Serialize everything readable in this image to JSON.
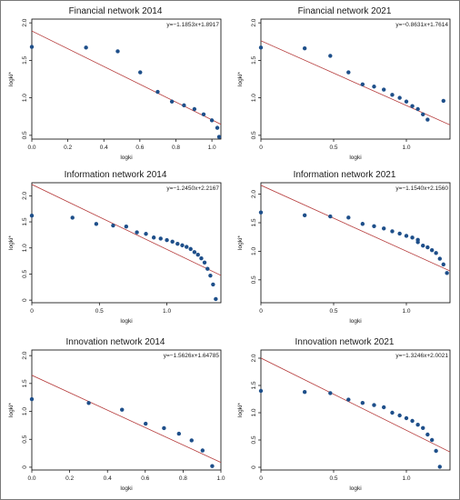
{
  "figure": {
    "colors": {
      "points": "#1e4f8a",
      "fit_line": "#b53a3a",
      "frame": "#000000",
      "background": "#ffffff"
    }
  },
  "chart_data": [
    {
      "type": "scatter",
      "title": "Financial network 2014",
      "xlabel": "logki",
      "ylabel": "logki*",
      "equation": "y=−1.1853x+1.8917",
      "fit": {
        "slope": -1.1853,
        "intercept": 1.8917
      },
      "xlim": [
        0,
        1.05
      ],
      "ylim": [
        0.45,
        2.05
      ],
      "xticks": [
        {
          "v": 0,
          "label": "0.0"
        },
        {
          "v": 0.2,
          "label": "0.2"
        },
        {
          "v": 0.4,
          "label": "0.4"
        },
        {
          "v": 0.6,
          "label": "0.6"
        },
        {
          "v": 0.8,
          "label": "0.8"
        },
        {
          "v": 1.0,
          "label": "1.0"
        }
      ],
      "yticks": [
        {
          "v": 0.5,
          "label": "0.5"
        },
        {
          "v": 1.0,
          "label": "1.0"
        },
        {
          "v": 1.5,
          "label": "1.5"
        },
        {
          "v": 2.0,
          "label": "2.0"
        }
      ],
      "points": [
        [
          0,
          1.68
        ],
        [
          0.301,
          1.67
        ],
        [
          0.477,
          1.62
        ],
        [
          0.602,
          1.34
        ],
        [
          0.699,
          1.08
        ],
        [
          0.778,
          0.95
        ],
        [
          0.845,
          0.9
        ],
        [
          0.903,
          0.85
        ],
        [
          0.954,
          0.78
        ],
        [
          1.0,
          0.7
        ],
        [
          1.03,
          0.6
        ],
        [
          1.04,
          0.48
        ]
      ]
    },
    {
      "type": "scatter",
      "title": "Financial network 2021",
      "xlabel": "logki",
      "ylabel": "logki*",
      "equation": "y=−0.8631x+1.7614",
      "fit": {
        "slope": -0.8631,
        "intercept": 1.7614
      },
      "xlim": [
        0,
        1.3
      ],
      "ylim": [
        0.45,
        2.05
      ],
      "xticks": [
        {
          "v": 0,
          "label": "0"
        },
        {
          "v": 0.5,
          "label": "0.5"
        },
        {
          "v": 1.0,
          "label": "1.0"
        }
      ],
      "yticks": [
        {
          "v": 0.5,
          "label": "0.5"
        },
        {
          "v": 1.0,
          "label": "1.0"
        },
        {
          "v": 1.5,
          "label": "1.5"
        },
        {
          "v": 2.0,
          "label": "2.0"
        }
      ],
      "points": [
        [
          0,
          1.67
        ],
        [
          0.301,
          1.66
        ],
        [
          0.477,
          1.56
        ],
        [
          0.602,
          1.34
        ],
        [
          0.699,
          1.18
        ],
        [
          0.778,
          1.15
        ],
        [
          0.845,
          1.11
        ],
        [
          0.903,
          1.04
        ],
        [
          0.954,
          1.0
        ],
        [
          1.0,
          0.95
        ],
        [
          1.041,
          0.89
        ],
        [
          1.079,
          0.85
        ],
        [
          1.114,
          0.78
        ],
        [
          1.146,
          0.71
        ],
        [
          1.255,
          0.96
        ]
      ]
    },
    {
      "type": "scatter",
      "title": "Information network 2014",
      "xlabel": "logki",
      "ylabel": "logki*",
      "equation": "y=−1.2450x+2.2167",
      "fit": {
        "slope": -1.245,
        "intercept": 2.2167
      },
      "xlim": [
        0,
        1.4
      ],
      "ylim": [
        -0.05,
        2.25
      ],
      "xticks": [
        {
          "v": 0,
          "label": "0"
        },
        {
          "v": 0.5,
          "label": "0.5"
        },
        {
          "v": 1.0,
          "label": "1.0"
        }
      ],
      "yticks": [
        {
          "v": 0,
          "label": "0"
        },
        {
          "v": 0.5,
          "label": "0.5"
        },
        {
          "v": 1.0,
          "label": "1.0"
        },
        {
          "v": 1.5,
          "label": "1.5"
        },
        {
          "v": 2.0,
          "label": "2.0"
        }
      ],
      "points": [
        [
          0,
          1.62
        ],
        [
          0.301,
          1.58
        ],
        [
          0.477,
          1.46
        ],
        [
          0.602,
          1.43
        ],
        [
          0.699,
          1.41
        ],
        [
          0.778,
          1.3
        ],
        [
          0.845,
          1.27
        ],
        [
          0.903,
          1.2
        ],
        [
          0.954,
          1.18
        ],
        [
          1.0,
          1.15
        ],
        [
          1.041,
          1.12
        ],
        [
          1.079,
          1.08
        ],
        [
          1.114,
          1.05
        ],
        [
          1.146,
          1.02
        ],
        [
          1.176,
          0.98
        ],
        [
          1.204,
          0.92
        ],
        [
          1.23,
          0.87
        ],
        [
          1.255,
          0.8
        ],
        [
          1.279,
          0.72
        ],
        [
          1.301,
          0.6
        ],
        [
          1.322,
          0.47
        ],
        [
          1.342,
          0.3
        ],
        [
          1.362,
          0.02
        ]
      ]
    },
    {
      "type": "scatter",
      "title": "Information network 2021",
      "xlabel": "logki",
      "ylabel": "logki*",
      "equation": "y=−1.1540x+2.1560",
      "fit": {
        "slope": -1.154,
        "intercept": 2.156
      },
      "xlim": [
        0,
        1.3
      ],
      "ylim": [
        0.1,
        2.2
      ],
      "xticks": [
        {
          "v": 0,
          "label": "0"
        },
        {
          "v": 0.5,
          "label": "0.5"
        },
        {
          "v": 1.0,
          "label": "1.0"
        }
      ],
      "yticks": [
        {
          "v": 0.5,
          "label": "0.5"
        },
        {
          "v": 1.0,
          "label": "1.0"
        },
        {
          "v": 1.5,
          "label": "1.5"
        },
        {
          "v": 2.0,
          "label": "2.0"
        }
      ],
      "points": [
        [
          0,
          1.68
        ],
        [
          0.301,
          1.63
        ],
        [
          0.477,
          1.61
        ],
        [
          0.602,
          1.59
        ],
        [
          0.699,
          1.48
        ],
        [
          0.778,
          1.44
        ],
        [
          0.845,
          1.4
        ],
        [
          0.903,
          1.35
        ],
        [
          0.954,
          1.31
        ],
        [
          1.0,
          1.27
        ],
        [
          1.041,
          1.24
        ],
        [
          1.079,
          1.2
        ],
        [
          1.079,
          1.16
        ],
        [
          1.114,
          1.1
        ],
        [
          1.146,
          1.07
        ],
        [
          1.176,
          1.02
        ],
        [
          1.204,
          0.97
        ],
        [
          1.23,
          0.87
        ],
        [
          1.255,
          0.77
        ],
        [
          1.279,
          0.62
        ]
      ]
    },
    {
      "type": "scatter",
      "title": "Innovation network 2014",
      "xlabel": "logki",
      "ylabel": "logki*",
      "equation": "y=−1.5626x+1.64785",
      "fit": {
        "slope": -1.5626,
        "intercept": 1.64785
      },
      "xlim": [
        0,
        1.0
      ],
      "ylim": [
        -0.05,
        2.1
      ],
      "xticks": [
        {
          "v": 0,
          "label": "0.0"
        },
        {
          "v": 0.2,
          "label": "0.2"
        },
        {
          "v": 0.4,
          "label": "0.4"
        },
        {
          "v": 0.6,
          "label": "0.6"
        },
        {
          "v": 0.8,
          "label": "0.8"
        },
        {
          "v": 1.0,
          "label": "1.0"
        }
      ],
      "yticks": [
        {
          "v": 0,
          "label": "0"
        },
        {
          "v": 0.5,
          "label": "0.5"
        },
        {
          "v": 1.0,
          "label": "1.0"
        },
        {
          "v": 1.5,
          "label": "1.5"
        },
        {
          "v": 2.0,
          "label": "2.0"
        }
      ],
      "points": [
        [
          0,
          1.22
        ],
        [
          0.301,
          1.15
        ],
        [
          0.477,
          1.03
        ],
        [
          0.602,
          0.78
        ],
        [
          0.699,
          0.7
        ],
        [
          0.778,
          0.6
        ],
        [
          0.845,
          0.48
        ],
        [
          0.903,
          0.3
        ],
        [
          0.954,
          0.02
        ]
      ]
    },
    {
      "type": "scatter",
      "title": "Innovation network 2021",
      "xlabel": "logki",
      "ylabel": "logki*",
      "equation": "y=−1.3246x+2.0021",
      "fit": {
        "slope": -1.3246,
        "intercept": 2.0021
      },
      "xlim": [
        0,
        1.3
      ],
      "ylim": [
        -0.05,
        2.15
      ],
      "xticks": [
        {
          "v": 0,
          "label": "0"
        },
        {
          "v": 0.5,
          "label": "0.5"
        },
        {
          "v": 1.0,
          "label": "1.0"
        }
      ],
      "yticks": [
        {
          "v": 0,
          "label": "0"
        },
        {
          "v": 0.5,
          "label": "0.5"
        },
        {
          "v": 1.0,
          "label": "1.0"
        },
        {
          "v": 1.5,
          "label": "1.5"
        },
        {
          "v": 2.0,
          "label": "2.0"
        }
      ],
      "points": [
        [
          0,
          1.4
        ],
        [
          0.301,
          1.38
        ],
        [
          0.477,
          1.36
        ],
        [
          0.602,
          1.24
        ],
        [
          0.699,
          1.18
        ],
        [
          0.778,
          1.14
        ],
        [
          0.845,
          1.1
        ],
        [
          0.903,
          1.0
        ],
        [
          0.954,
          0.95
        ],
        [
          1.0,
          0.9
        ],
        [
          1.041,
          0.85
        ],
        [
          1.079,
          0.78
        ],
        [
          1.114,
          0.72
        ],
        [
          1.146,
          0.6
        ],
        [
          1.176,
          0.5
        ],
        [
          1.204,
          0.3
        ],
        [
          1.23,
          0.01
        ]
      ]
    }
  ]
}
